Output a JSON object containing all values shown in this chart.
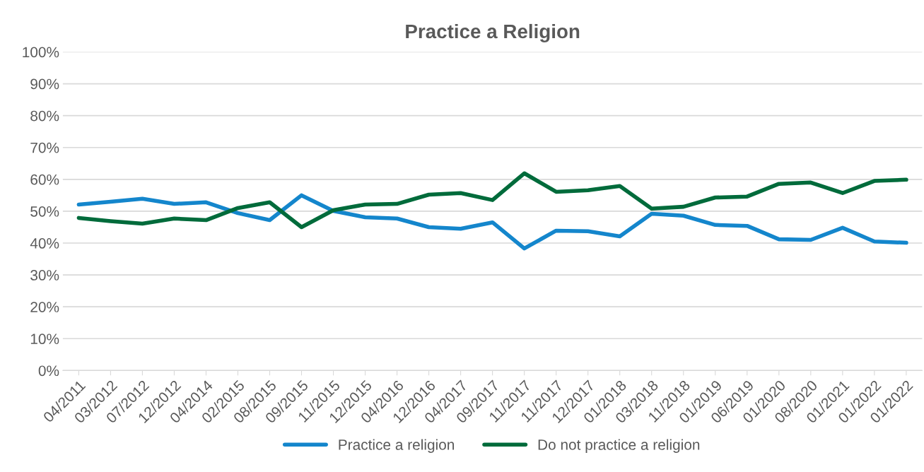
{
  "chart_data": {
    "type": "line",
    "title": "Practice a Religion",
    "categories": [
      "04/2011",
      "03/2012",
      "07/2012",
      "12/2012",
      "04/2014",
      "02/2015",
      "08/2015",
      "09/2015",
      "11/2015",
      "12/2015",
      "04/2016",
      "12/2016",
      "04/2017",
      "09/2017",
      "11/2017",
      "11/2017",
      "12/2017",
      "01/2018",
      "03/2018",
      "11/2018",
      "01/2019",
      "06/2019",
      "01/2020",
      "08/2020",
      "01/2021",
      "01/2022",
      "01/2022"
    ],
    "series": [
      {
        "name": "Practice a religion",
        "color": "#1486cc",
        "values": [
          52.1,
          53,
          53.9,
          52.3,
          52.8,
          49.4,
          47.2,
          55,
          50.1,
          48.1,
          47.7,
          45,
          44.5,
          46.5,
          38.3,
          43.9,
          43.7,
          42.1,
          49.2,
          48.6,
          45.7,
          45.4,
          41.2,
          41,
          44.8,
          40.5,
          40.1
        ]
      },
      {
        "name": "Do not practice a religion",
        "color": "#006b3b",
        "values": [
          47.9,
          46.9,
          46.1,
          47.7,
          47.2,
          51,
          52.8,
          45,
          50.3,
          52.1,
          52.3,
          55.2,
          55.7,
          53.5,
          61.9,
          56.1,
          56.6,
          57.9,
          50.8,
          51.4,
          54.3,
          54.6,
          58.6,
          59,
          55.7,
          59.5,
          59.9
        ]
      }
    ],
    "ylim": [
      0,
      100
    ],
    "yticks": [
      {
        "value": 0,
        "label": "0%"
      },
      {
        "value": 10,
        "label": "10%"
      },
      {
        "value": 20,
        "label": "20%"
      },
      {
        "value": 30,
        "label": "30%"
      },
      {
        "value": 40,
        "label": "40%"
      },
      {
        "value": 50,
        "label": "50%"
      },
      {
        "value": 60,
        "label": "60%"
      },
      {
        "value": 70,
        "label": "70%"
      },
      {
        "value": 80,
        "label": "80%"
      },
      {
        "value": 90,
        "label": "90%"
      },
      {
        "value": 100,
        "label": "100%"
      }
    ],
    "grid": "y",
    "legend": "bottom",
    "marker": "none",
    "line_style": "solid"
  }
}
